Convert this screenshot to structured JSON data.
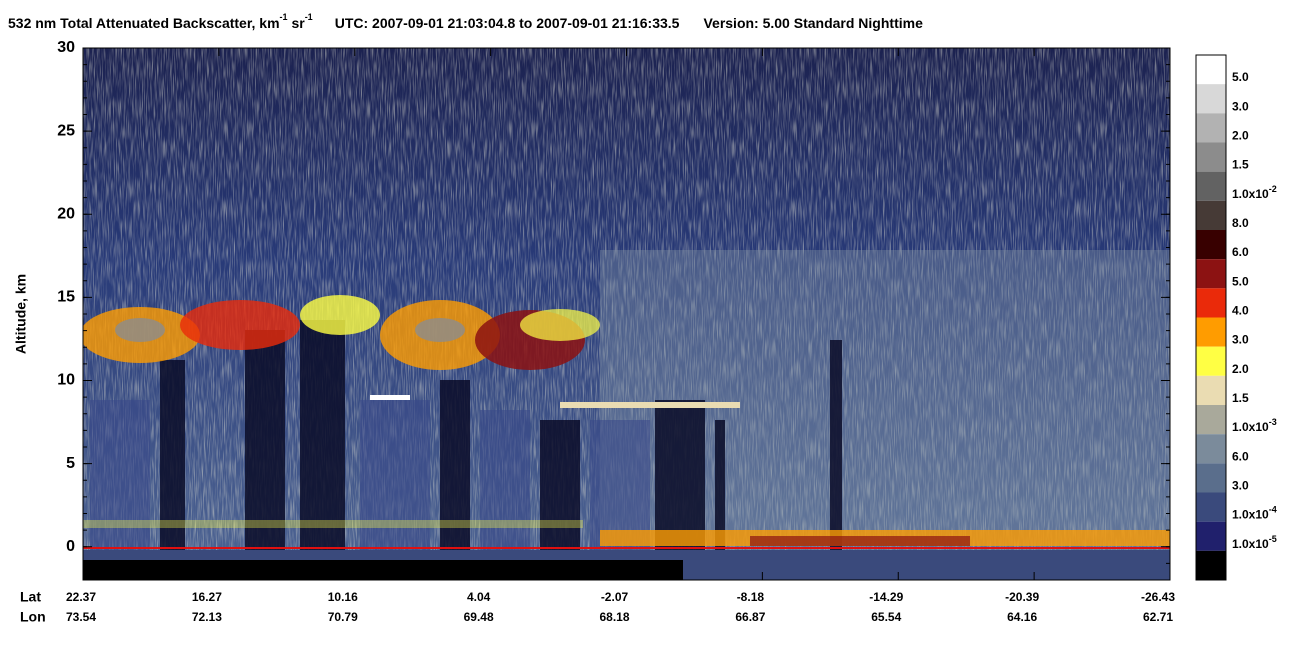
{
  "chart_data": {
    "type": "image",
    "title": [
      "532 nm Total Attenuated Backscatter, km",
      "-1",
      " sr",
      "-1",
      "UTC:  2007-09-01 21:03:04.8  to  2007-09-01 21:16:33.5",
      "Version: 5.00  Standard  Nighttime"
    ],
    "y_label": "Altitude, km",
    "ylim": [
      -2,
      30
    ],
    "yticks": [
      0,
      5,
      10,
      15,
      20,
      25,
      30
    ],
    "x_row_labels": [
      "Lat",
      "Lon"
    ],
    "lat": [
      "22.37",
      "16.27",
      "10.16",
      "4.04",
      "-2.07",
      "-8.18",
      "-14.29",
      "-20.39",
      "-26.43"
    ],
    "lon": [
      "73.54",
      "72.13",
      "70.79",
      "69.48",
      "68.18",
      "66.87",
      "65.54",
      "64.16",
      "62.71"
    ],
    "colorbar": {
      "colors": [
        "#ffffff",
        "#d8d8d8",
        "#b2b2b2",
        "#8c8c8c",
        "#626262",
        "#463a36",
        "#380000",
        "#8c1212",
        "#ea2a0a",
        "#ff9c00",
        "#ffff44",
        "#eadcb2",
        "#a9a99b",
        "#7b8b9b",
        "#5a6e8c",
        "#3a4a7c",
        "#20206c",
        "#000000"
      ],
      "labels": [
        {
          "text": "5.0"
        },
        {
          "text": "3.0"
        },
        {
          "text": "2.0"
        },
        {
          "text": "1.5"
        },
        {
          "text": "1.0x10",
          "sup": "-2"
        },
        {
          "text": "8.0"
        },
        {
          "text": "6.0"
        },
        {
          "text": "5.0"
        },
        {
          "text": "4.0"
        },
        {
          "text": "3.0"
        },
        {
          "text": "2.0"
        },
        {
          "text": "1.5"
        },
        {
          "text": "1.0x10",
          "sup": "-3"
        },
        {
          "text": "6.0"
        },
        {
          "text": "3.0"
        },
        {
          "text": "1.0x10",
          "sup": "-4"
        },
        {
          "text": "1.0x10",
          "sup": "-5"
        }
      ]
    }
  }
}
